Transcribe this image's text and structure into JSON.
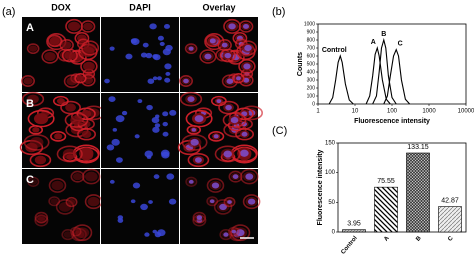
{
  "panels": [
    "(a)",
    "(b)",
    "(C)"
  ],
  "microscopy": {
    "columns": [
      "DOX",
      "DAPI",
      "Overlay"
    ],
    "rows": [
      "A",
      "B",
      "C"
    ]
  },
  "chart_data": [
    {
      "type": "line",
      "xlabel": "Fluorescence intensity",
      "ylabel": "Counts",
      "xscale": "log",
      "xlim": [
        1,
        10000
      ],
      "xticks": [
        1,
        10,
        100,
        1000,
        10000
      ],
      "ylim": [
        0,
        1000
      ],
      "yticks": [
        0,
        100,
        200,
        300,
        400,
        500,
        600,
        700,
        800,
        900,
        1000
      ],
      "series": [
        {
          "name": "Control",
          "color": "#000000",
          "x": [
            2,
            2.5,
            3,
            3.5,
            4,
            4.5,
            5.5,
            7,
            9
          ],
          "values": [
            0,
            80,
            300,
            520,
            600,
            520,
            250,
            50,
            0
          ]
        },
        {
          "name": "A",
          "color": "#000000",
          "x": [
            20,
            25,
            30,
            35,
            40,
            45,
            55,
            70,
            90
          ],
          "values": [
            0,
            100,
            350,
            620,
            700,
            600,
            300,
            60,
            0
          ]
        },
        {
          "name": "B",
          "color": "#000000",
          "x": [
            30,
            38,
            45,
            52,
            60,
            68,
            80,
            100,
            130
          ],
          "values": [
            0,
            100,
            400,
            700,
            800,
            700,
            350,
            80,
            0
          ]
        },
        {
          "name": "C",
          "color": "#000000",
          "x": [
            60,
            75,
            90,
            110,
            130,
            150,
            180,
            230,
            300
          ],
          "values": [
            0,
            100,
            350,
            600,
            680,
            600,
            300,
            60,
            0
          ]
        }
      ]
    },
    {
      "type": "bar",
      "ylabel": "Fluorescence intensity",
      "categories": [
        "Control",
        "A",
        "B",
        "C"
      ],
      "values": [
        3.95,
        75.55,
        133.15,
        42.87
      ],
      "ylim": [
        0,
        150
      ],
      "yticks": [
        0,
        50,
        100,
        150
      ]
    }
  ]
}
